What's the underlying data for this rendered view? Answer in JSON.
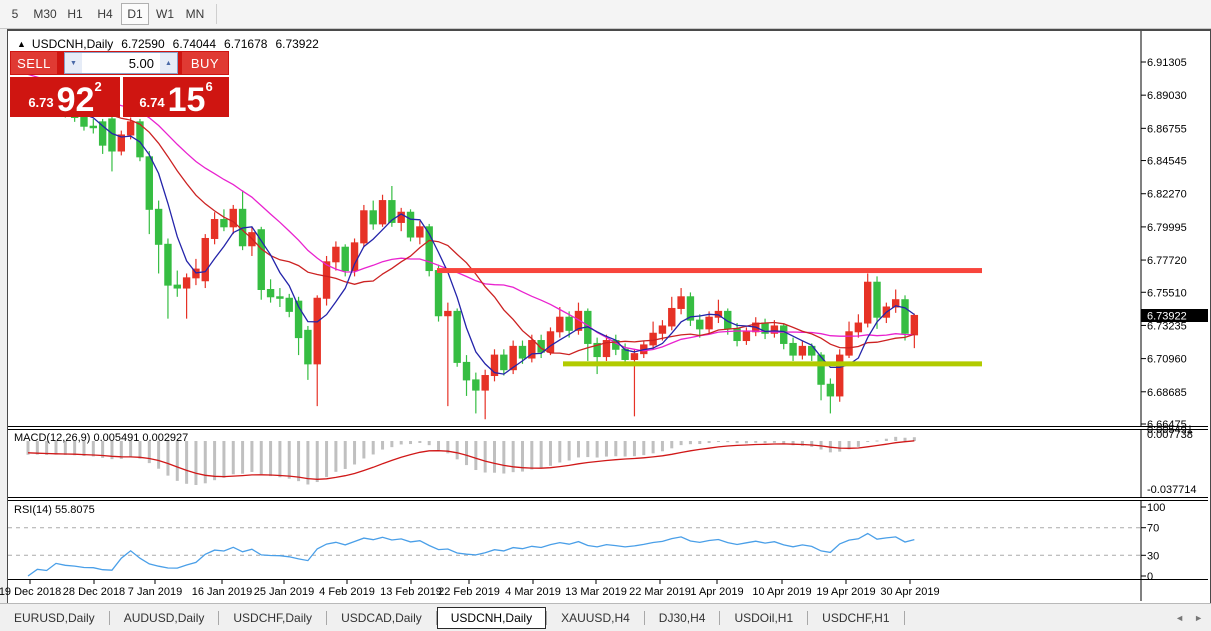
{
  "toolbar": {
    "timeframes": [
      "5",
      "M30",
      "H1",
      "H4",
      "D1",
      "W1",
      "MN"
    ],
    "active": "D1"
  },
  "chart": {
    "collapse_arrow": "▲",
    "symbol_label": "USDCNH,Daily",
    "ohlc": {
      "open": "6.72590",
      "high": "6.74044",
      "low": "6.71678",
      "close": "6.73922"
    },
    "trade_panel": {
      "sell_label": "SELL",
      "buy_label": "BUY",
      "volume": "5.00",
      "down_arrow": "▼",
      "up_arrow": "▲",
      "sell_price": {
        "small": "6.73",
        "big": "92",
        "sup": "2"
      },
      "buy_price": {
        "small": "6.74",
        "big": "15",
        "sup": "6"
      }
    },
    "price_axis": {
      "labels": [
        "6.91305",
        "6.89030",
        "6.86755",
        "6.84545",
        "6.82270",
        "6.79995",
        "6.77720",
        "6.75510",
        "6.73235",
        "6.70960",
        "6.68685",
        "6.66475"
      ],
      "values": [
        6.91305,
        6.8903,
        6.86755,
        6.84545,
        6.8227,
        6.79995,
        6.7772,
        6.7551,
        6.73235,
        6.7096,
        6.68685,
        6.66475
      ],
      "current": "6.73922",
      "current_value": 6.73922
    },
    "date_axis": [
      "19 Dec 2018",
      "28 Dec 2018",
      "7 Jan 2019",
      "16 Jan 2019",
      "25 Jan 2019",
      "4 Feb 2019",
      "13 Feb 2019",
      "22 Feb 2019",
      "4 Mar 2019",
      "13 Mar 2019",
      "22 Mar 2019",
      "1 Apr 2019",
      "10 Apr 2019",
      "19 Apr 2019",
      "30 Apr 2019"
    ],
    "levels": {
      "resistance": 6.77,
      "support": 6.706
    },
    "colors": {
      "up": "#e63226",
      "down": "#36bd42",
      "ma_fast": "#2424aa",
      "ma_mid": "#cc2222",
      "ma_slow": "#e922cf",
      "macd_hist": "#c0c0c0",
      "macd_signal": "#d01818",
      "rsi": "#4a9fe8",
      "resistance": "#f8453c",
      "support": "#b2cb00"
    },
    "candles": [
      [
        6.879,
        6.888,
        6.876,
        6.883
      ],
      [
        6.883,
        6.889,
        6.88,
        6.886
      ],
      [
        6.886,
        6.888,
        6.877,
        6.88
      ],
      [
        6.88,
        6.886,
        6.877,
        6.884
      ],
      [
        6.884,
        6.887,
        6.875,
        6.878
      ],
      [
        6.878,
        6.882,
        6.872,
        6.875
      ],
      [
        6.875,
        6.878,
        6.866,
        6.869
      ],
      [
        6.869,
        6.874,
        6.864,
        6.868
      ],
      [
        6.872,
        6.874,
        6.85,
        6.856
      ],
      [
        6.874,
        6.876,
        6.838,
        6.852
      ],
      [
        6.852,
        6.866,
        6.849,
        6.863
      ],
      [
        6.863,
        6.875,
        6.86,
        6.872
      ],
      [
        6.872,
        6.874,
        6.845,
        6.848
      ],
      [
        6.848,
        6.852,
        6.795,
        6.812
      ],
      [
        6.812,
        6.818,
        6.768,
        6.788
      ],
      [
        6.788,
        6.792,
        6.737,
        6.76
      ],
      [
        6.76,
        6.77,
        6.752,
        6.758
      ],
      [
        6.758,
        6.768,
        6.737,
        6.765
      ],
      [
        6.765,
        6.778,
        6.76,
        6.771
      ],
      [
        6.763,
        6.795,
        6.758,
        6.792
      ],
      [
        6.792,
        6.81,
        6.788,
        6.805
      ],
      [
        6.805,
        6.812,
        6.797,
        6.8
      ],
      [
        6.8,
        6.815,
        6.795,
        6.812
      ],
      [
        6.812,
        6.825,
        6.784,
        6.787
      ],
      [
        6.787,
        6.8,
        6.78,
        6.796
      ],
      [
        6.798,
        6.8,
        6.75,
        6.757
      ],
      [
        6.757,
        6.764,
        6.748,
        6.752
      ],
      [
        6.752,
        6.758,
        6.745,
        6.751
      ],
      [
        6.751,
        6.754,
        6.738,
        6.742
      ],
      [
        6.749,
        6.752,
        6.712,
        6.724
      ],
      [
        6.729,
        6.732,
        6.695,
        6.706
      ],
      [
        6.706,
        6.753,
        6.677,
        6.751
      ],
      [
        6.751,
        6.78,
        6.746,
        6.776
      ],
      [
        6.776,
        6.79,
        6.77,
        6.786
      ],
      [
        6.786,
        6.788,
        6.766,
        6.77
      ],
      [
        6.77,
        6.792,
        6.766,
        6.789
      ],
      [
        6.789,
        6.815,
        6.786,
        6.811
      ],
      [
        6.811,
        6.818,
        6.798,
        6.802
      ],
      [
        6.802,
        6.822,
        6.8,
        6.818
      ],
      [
        6.818,
        6.828,
        6.8,
        6.803
      ],
      [
        6.803,
        6.813,
        6.797,
        6.81
      ],
      [
        6.81,
        6.812,
        6.79,
        6.793
      ],
      [
        6.793,
        6.804,
        6.788,
        6.8
      ],
      [
        6.8,
        6.802,
        6.766,
        6.77
      ],
      [
        6.77,
        6.774,
        6.735,
        6.739
      ],
      [
        6.739,
        6.748,
        6.677,
        6.742
      ],
      [
        6.742,
        6.744,
        6.704,
        6.707
      ],
      [
        6.707,
        6.712,
        6.684,
        6.695
      ],
      [
        6.695,
        6.7,
        6.672,
        6.688
      ],
      [
        6.688,
        6.702,
        6.668,
        6.698
      ],
      [
        6.698,
        6.716,
        6.694,
        6.712
      ],
      [
        6.712,
        6.716,
        6.698,
        6.702
      ],
      [
        6.702,
        6.722,
        6.699,
        6.718
      ],
      [
        6.718,
        6.722,
        6.706,
        6.71
      ],
      [
        6.71,
        6.726,
        6.707,
        6.722
      ],
      [
        6.722,
        6.726,
        6.71,
        6.714
      ],
      [
        6.714,
        6.731,
        6.712,
        6.728
      ],
      [
        6.728,
        6.745,
        6.724,
        6.738
      ],
      [
        6.738,
        6.742,
        6.724,
        6.729
      ],
      [
        6.729,
        6.748,
        6.726,
        6.742
      ],
      [
        6.742,
        6.744,
        6.708,
        6.72
      ],
      [
        6.72,
        6.724,
        6.699,
        6.711
      ],
      [
        6.711,
        6.726,
        6.708,
        6.722
      ],
      [
        6.722,
        6.726,
        6.712,
        6.716
      ],
      [
        6.716,
        6.72,
        6.705,
        6.709
      ],
      [
        6.709,
        6.716,
        6.67,
        6.713
      ],
      [
        6.713,
        6.722,
        6.71,
        6.719
      ],
      [
        6.719,
        6.735,
        6.716,
        6.727
      ],
      [
        6.727,
        6.736,
        6.722,
        6.732
      ],
      [
        6.732,
        6.752,
        6.729,
        6.744
      ],
      [
        6.744,
        6.758,
        6.74,
        6.752
      ],
      [
        6.752,
        6.755,
        6.732,
        6.736
      ],
      [
        6.736,
        6.74,
        6.724,
        6.73
      ],
      [
        6.73,
        6.742,
        6.727,
        6.738
      ],
      [
        6.738,
        6.75,
        6.734,
        6.742
      ],
      [
        6.742,
        6.744,
        6.726,
        6.73
      ],
      [
        6.73,
        6.734,
        6.718,
        6.722
      ],
      [
        6.722,
        6.731,
        6.719,
        6.728
      ],
      [
        6.728,
        6.738,
        6.725,
        6.734
      ],
      [
        6.734,
        6.737,
        6.723,
        6.727
      ],
      [
        6.727,
        6.736,
        6.724,
        6.732
      ],
      [
        6.732,
        6.734,
        6.716,
        6.72
      ],
      [
        6.72,
        6.724,
        6.708,
        6.712
      ],
      [
        6.712,
        6.722,
        6.709,
        6.718
      ],
      [
        6.718,
        6.72,
        6.708,
        6.712
      ],
      [
        6.712,
        6.714,
        6.681,
        6.692
      ],
      [
        6.692,
        6.696,
        6.672,
        6.684
      ],
      [
        6.684,
        6.716,
        6.68,
        6.712
      ],
      [
        6.712,
        6.735,
        6.71,
        6.728
      ],
      [
        6.728,
        6.74,
        6.724,
        6.734
      ],
      [
        6.734,
        6.768,
        6.731,
        6.762
      ],
      [
        6.762,
        6.766,
        6.73,
        6.738
      ],
      [
        6.738,
        6.748,
        6.734,
        6.745
      ],
      [
        6.745,
        6.757,
        6.741,
        6.75
      ],
      [
        6.75,
        6.753,
        6.722,
        6.727
      ],
      [
        6.7259,
        6.74044,
        6.71678,
        6.73922
      ]
    ]
  },
  "macd": {
    "label": "MACD(12,26,9) 0.005491 0.002927",
    "value": "0.005491",
    "signal": "0.002927",
    "axis_max": "0.007738",
    "axis_overlap": "0.005491",
    "axis_min": "-0.037714"
  },
  "rsi": {
    "label": "RSI(14) 55.8075",
    "value": "55.8075",
    "axis": [
      "100",
      "70",
      "30",
      "0"
    ],
    "axis_values": [
      100,
      70,
      30,
      0
    ],
    "bands": [
      70,
      30
    ]
  },
  "tabs": {
    "items": [
      "EURUSD,Daily",
      "AUDUSD,Daily",
      "USDCHF,Daily",
      "USDCAD,Daily",
      "USDCNH,Daily",
      "XAUUSD,H4",
      "DJ30,H4",
      "USDOil,H1",
      "USDCHF,H1"
    ],
    "active_index": 4,
    "scroll_left": "◄",
    "scroll_right": "►"
  }
}
